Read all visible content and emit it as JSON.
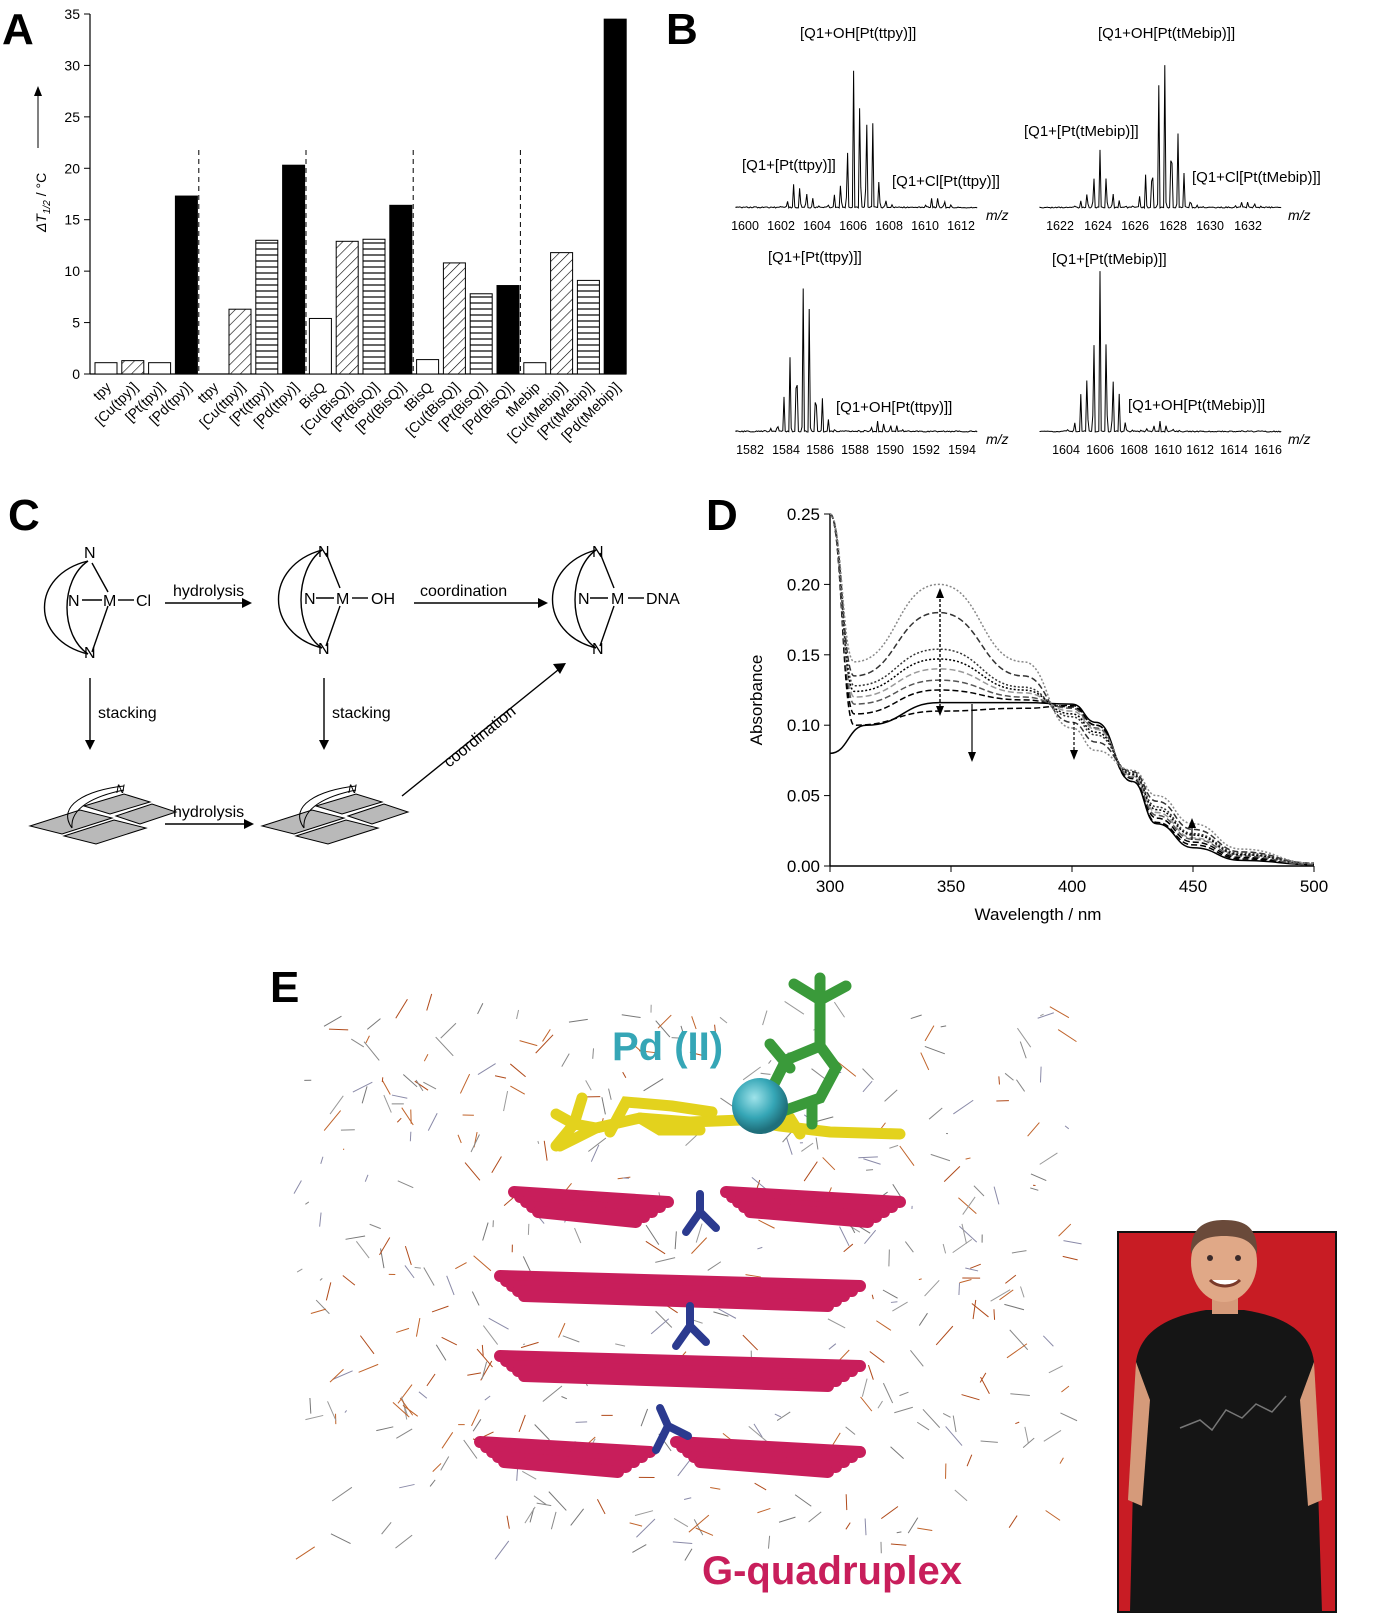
{
  "panels": {
    "A": "A",
    "B": "B",
    "C": "C",
    "D": "D",
    "E": "E"
  },
  "panelA": {
    "ylabel_delta": "ΔT",
    "ylabel_sub": "1/2",
    "ylabel_unit": " / °C"
  },
  "panelB": {
    "unit": "m/z",
    "spectra": [
      {
        "label_main": "[Q1+OH[Pt(ttpy)]]",
        "label_side1": "[Q1+[Pt(ttpy)]]",
        "label_side2": "[Q1+Cl[Pt(ttpy)]]",
        "ticks": [
          "1600",
          "1602",
          "1604",
          "1606",
          "1608",
          "1610",
          "1612"
        ]
      },
      {
        "label_main": "[Q1+OH[Pt(tMebip)]]",
        "label_side1": "[Q1+[Pt(tMebip)]]",
        "label_side2": "[Q1+Cl[Pt(tMebip)]]",
        "ticks": [
          "1622",
          "1624",
          "1626",
          "1628",
          "1630",
          "1632"
        ]
      },
      {
        "label_main": "[Q1+[Pt(ttpy)]]",
        "label_side1": "[Q1+OH[Pt(ttpy)]]",
        "ticks": [
          "1582",
          "1584",
          "1586",
          "1588",
          "1590",
          "1592",
          "1594"
        ]
      },
      {
        "label_main": "[Q1+[Pt(tMebip)]]",
        "label_side1": "[Q1+OH[Pt(tMebip)]]",
        "ticks": [
          "1604",
          "1606",
          "1608",
          "1610",
          "1612",
          "1614",
          "1616"
        ]
      }
    ]
  },
  "panelC": {
    "N": "N",
    "M": "M",
    "Cl": "Cl",
    "OH": "OH",
    "DNA": "DNA",
    "hydrolysis": "hydrolysis",
    "coordination": "coordination",
    "stacking": "stacking"
  },
  "panelE": {
    "metal_label": "Pd (II)",
    "dna_label": "G-quadruplex"
  },
  "colors": {
    "ligand_yellow": "#e3d21d",
    "pd_teal": "#35a6b6",
    "tolyl_green": "#3a9a3a",
    "quartet_magenta": "#c81e5b",
    "potassium_blue": "#2b3a8f",
    "photo_bg": "#c81c24"
  },
  "chart_data": [
    {
      "panel": "A",
      "type": "bar",
      "ylabel": "ΔT1/2 / °C",
      "ylim": [
        0,
        35
      ],
      "yticks": [
        0,
        5,
        10,
        15,
        20,
        25,
        30,
        35
      ],
      "groups": [
        {
          "categories": [
            "tpy",
            "[Cu(tpy)]",
            "[Pt(tpy)]",
            "[Pd(tpy)]"
          ],
          "values": [
            1.1,
            1.3,
            1.1,
            17.3
          ],
          "styles": [
            "open",
            "hatch",
            "open",
            "solid"
          ]
        },
        {
          "categories": [
            "ttpy",
            "[Cu(ttpy)]",
            "[Pt(ttpy)]",
            "[Pd(ttpy)]"
          ],
          "values": [
            0,
            6.3,
            13.0,
            20.3
          ],
          "styles": [
            "open",
            "hatch",
            "stripe",
            "solid"
          ]
        },
        {
          "categories": [
            "BisQ",
            "[Cu(BisQ)]",
            "[Pt(BisQ)]",
            "[Pd(BisQ)]"
          ],
          "values": [
            5.4,
            12.9,
            13.1,
            16.4
          ],
          "styles": [
            "open",
            "hatch",
            "stripe",
            "solid"
          ]
        },
        {
          "categories": [
            "tBisQ",
            "[Cu(tBisQ)]",
            "[Pt(BisQ)]",
            "[Pd(BisQ)]"
          ],
          "values": [
            1.4,
            10.8,
            7.8,
            8.6
          ],
          "styles": [
            "open",
            "hatch",
            "stripe",
            "solid"
          ]
        },
        {
          "categories": [
            "tMebip",
            "[Cu(tMebip)]",
            "[Pt(tMebip)]",
            "[Pd(tMebip)]"
          ],
          "values": [
            1.1,
            11.8,
            9.1,
            34.5
          ],
          "styles": [
            "open",
            "hatch",
            "stripe",
            "solid"
          ]
        }
      ]
    },
    {
      "panel": "D",
      "type": "line",
      "xlabel": "Wavelength / nm",
      "ylabel": "Absorbance",
      "xlim": [
        300,
        500
      ],
      "ylim": [
        0.0,
        0.25
      ],
      "xticks": [
        300,
        350,
        400,
        450,
        500
      ],
      "yticks": [
        0.0,
        0.05,
        0.1,
        0.15,
        0.2,
        0.25
      ],
      "series": [
        {
          "style": "solid",
          "color": "#000000",
          "x": [
            300,
            315,
            345,
            380,
            400,
            410,
            425,
            435,
            450,
            470,
            500
          ],
          "y": [
            0.08,
            0.1,
            0.116,
            0.116,
            0.115,
            0.102,
            0.06,
            0.03,
            0.013,
            0.004,
            0.001
          ]
        },
        {
          "style": "dash",
          "color": "#000000",
          "x": [
            300,
            310,
            345,
            380,
            400,
            410,
            425,
            435,
            450,
            470,
            500
          ],
          "y": [
            0.25,
            0.1,
            0.11,
            0.112,
            0.114,
            0.1,
            0.06,
            0.031,
            0.015,
            0.005,
            0.001
          ]
        },
        {
          "style": "dash",
          "color": "#000000",
          "x": [
            300,
            310,
            345,
            380,
            400,
            410,
            425,
            435,
            450,
            470,
            500
          ],
          "y": [
            0.25,
            0.108,
            0.125,
            0.118,
            0.113,
            0.1,
            0.062,
            0.034,
            0.017,
            0.006,
            0.001
          ]
        },
        {
          "style": "dash",
          "color": "#555555",
          "x": [
            300,
            310,
            345,
            380,
            400,
            410,
            425,
            435,
            450,
            470,
            500
          ],
          "y": [
            0.25,
            0.115,
            0.132,
            0.12,
            0.112,
            0.098,
            0.063,
            0.036,
            0.019,
            0.007,
            0.001
          ]
        },
        {
          "style": "dash",
          "color": "#999999",
          "x": [
            300,
            310,
            345,
            380,
            400,
            410,
            425,
            435,
            450,
            470,
            500
          ],
          "y": [
            0.25,
            0.12,
            0.14,
            0.123,
            0.11,
            0.097,
            0.064,
            0.038,
            0.02,
            0.008,
            0.002
          ]
        },
        {
          "style": "dot",
          "color": "#000000",
          "x": [
            300,
            310,
            345,
            380,
            400,
            410,
            425,
            435,
            450,
            470,
            500
          ],
          "y": [
            0.25,
            0.124,
            0.147,
            0.125,
            0.108,
            0.095,
            0.065,
            0.04,
            0.022,
            0.008,
            0.002
          ]
        },
        {
          "style": "dot",
          "color": "#333333",
          "x": [
            300,
            310,
            345,
            380,
            400,
            410,
            425,
            435,
            450,
            470,
            500
          ],
          "y": [
            0.25,
            0.128,
            0.154,
            0.127,
            0.106,
            0.093,
            0.066,
            0.042,
            0.023,
            0.009,
            0.002
          ]
        },
        {
          "style": "dash",
          "color": "#333333",
          "x": [
            300,
            310,
            345,
            380,
            400,
            410,
            425,
            435,
            450,
            470,
            500
          ],
          "y": [
            0.25,
            0.135,
            0.18,
            0.135,
            0.102,
            0.088,
            0.067,
            0.046,
            0.026,
            0.01,
            0.002
          ]
        },
        {
          "style": "dot",
          "color": "#888888",
          "x": [
            300,
            310,
            345,
            380,
            400,
            410,
            425,
            435,
            450,
            470,
            500
          ],
          "y": [
            0.25,
            0.145,
            0.2,
            0.145,
            0.098,
            0.082,
            0.068,
            0.05,
            0.03,
            0.012,
            0.002
          ]
        }
      ]
    }
  ]
}
